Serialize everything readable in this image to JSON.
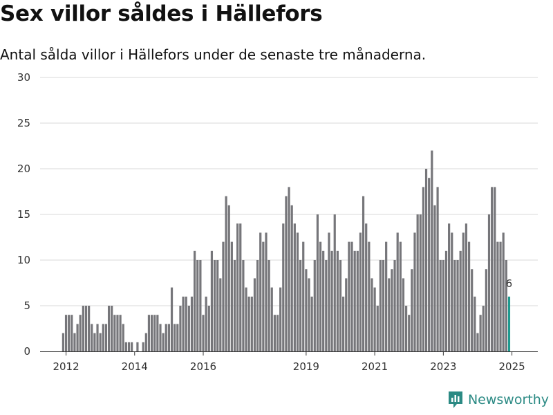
{
  "header": {
    "title": "Sex villor såldes i Hällefors",
    "subtitle": "Antal sålda villor i Hällefors under de senaste tre månaderna."
  },
  "brand": {
    "name": "Newsworthy"
  },
  "colors": {
    "bar": "#76767a",
    "highlight": "#1f9a8f",
    "grid": "#d9d9d9",
    "brand": "#2b8a84"
  },
  "chart_data": {
    "type": "bar",
    "x_start": "2012-03",
    "x_interval": "month",
    "values": [
      2,
      4,
      4,
      4,
      2,
      3,
      4,
      5,
      5,
      5,
      3,
      2,
      3,
      2,
      3,
      3,
      5,
      5,
      4,
      4,
      4,
      3,
      1,
      1,
      1,
      0,
      1,
      0,
      1,
      2,
      4,
      4,
      4,
      4,
      3,
      2,
      3,
      3,
      7,
      3,
      3,
      5,
      6,
      6,
      5,
      6,
      11,
      10,
      10,
      4,
      6,
      5,
      11,
      10,
      10,
      8,
      12,
      17,
      16,
      12,
      10,
      14,
      14,
      10,
      7,
      6,
      6,
      8,
      10,
      13,
      12,
      13,
      10,
      7,
      4,
      4,
      7,
      14,
      17,
      18,
      16,
      14,
      13,
      10,
      12,
      9,
      8,
      6,
      10,
      15,
      12,
      11,
      10,
      13,
      11,
      15,
      11,
      10,
      6,
      8,
      12,
      12,
      11,
      11,
      13,
      17,
      14,
      12,
      8,
      7,
      5,
      10,
      10,
      12,
      8,
      9,
      10,
      13,
      12,
      8,
      5,
      4,
      9,
      13,
      15,
      15,
      18,
      20,
      19,
      22,
      16,
      18,
      10,
      10,
      11,
      14,
      13,
      10,
      10,
      11,
      13,
      14,
      12,
      9,
      6,
      2,
      4,
      5,
      9,
      15,
      18,
      18,
      12,
      12,
      13,
      10,
      6
    ],
    "highlight_last": true,
    "annotation": {
      "text": "6"
    },
    "x_ticks": [
      "2012",
      "2014",
      "2016",
      "2019",
      "2021",
      "2023",
      "2025"
    ],
    "x_tick_index": [
      1,
      25,
      49,
      85,
      109,
      133,
      157
    ],
    "y_ticks": [
      "0",
      "5",
      "10",
      "15",
      "20",
      "25",
      "30"
    ],
    "ylim": [
      0,
      30
    ],
    "grid": true
  }
}
